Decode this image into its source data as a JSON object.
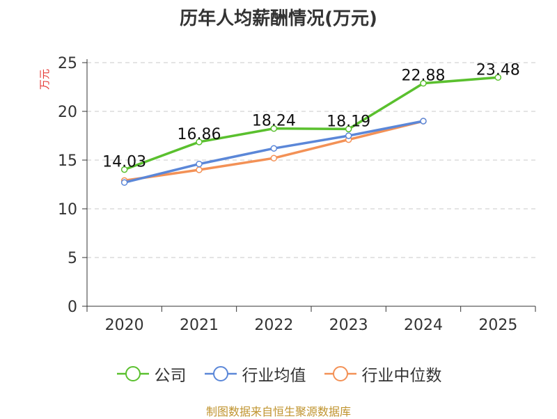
{
  "chart_data": {
    "type": "line",
    "title": "历年人均薪酬情况(万元)",
    "ylabel": "万元",
    "xlabel": "",
    "categories": [
      "2020",
      "2021",
      "2022",
      "2023",
      "2024",
      "2025"
    ],
    "ylim": [
      0,
      25
    ],
    "yticks": [
      0,
      5,
      10,
      15,
      20,
      25
    ],
    "grid": true,
    "legend_position": "bottom",
    "series": [
      {
        "name": "公司",
        "color": "#5ac02e",
        "values": [
          14.03,
          16.86,
          18.24,
          18.19,
          22.88,
          23.48
        ],
        "labels": [
          "14.03",
          "16.86",
          "18.24",
          "18.19",
          "22.88",
          "23.48"
        ]
      },
      {
        "name": "行业均值",
        "color": "#5b87d8",
        "values": [
          12.7,
          14.6,
          16.2,
          17.5,
          19.0,
          null
        ]
      },
      {
        "name": "行业中位数",
        "color": "#f39156",
        "values": [
          12.9,
          14.0,
          15.2,
          17.1,
          19.0,
          null
        ]
      }
    ]
  },
  "ylabel_color": "#e53935",
  "source_text": "制图数据来自恒生聚源数据库"
}
